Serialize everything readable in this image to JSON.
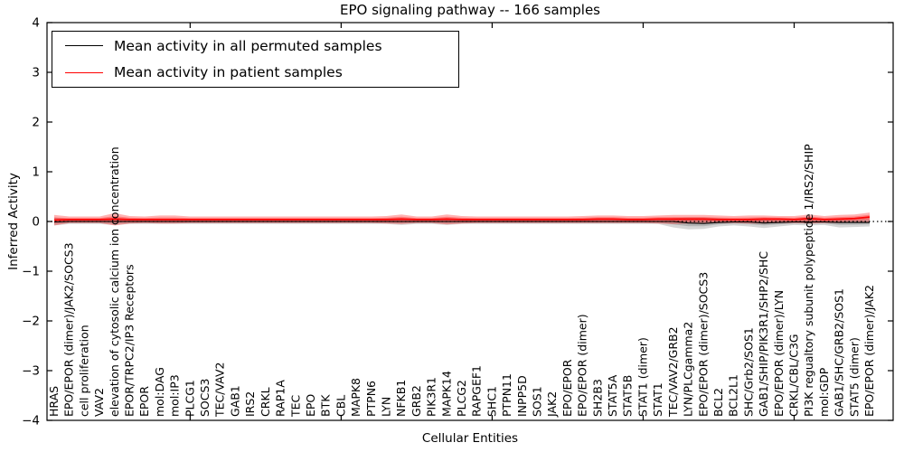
{
  "chart_data": {
    "type": "line",
    "title": "EPO signaling pathway -- 166 samples",
    "xlabel": "Cellular Entities",
    "ylabel": "Inferred Activity",
    "ylim": [
      -4,
      4
    ],
    "yticks": [
      -4,
      -3,
      -2,
      -1,
      0,
      1,
      2,
      3,
      4
    ],
    "x_major_tick_indices": [
      9,
      19,
      29,
      39,
      49
    ],
    "grid": false,
    "zero_line": {
      "style": "dotted",
      "color": "#000000",
      "y": 0
    },
    "legend": {
      "position": "upper-left",
      "entries": [
        {
          "label": "Mean activity in all permuted samples",
          "color": "#000000"
        },
        {
          "label": "Mean activity in patient samples",
          "color": "#ff0000"
        }
      ]
    },
    "categories": [
      "HRAS",
      "EPO/EPOR (dimer)/JAK2/SOCS3",
      "cell proliferation",
      "VAV2",
      "elevation of cytosolic calcium ion concentration",
      "EPOR/TRPC2/IP3 Receptors",
      "EPOR",
      "mol:DAG",
      "mol:IP3",
      "PLCG1",
      "SOCS3",
      "TEC/VAV2",
      "GAB1",
      "IRS2",
      "CRKL",
      "RAP1A",
      "TEC",
      "EPO",
      "BTK",
      "CBL",
      "MAPK8",
      "PTPN6",
      "LYN",
      "NFKB1",
      "GRB2",
      "PIK3R1",
      "MAPK14",
      "PLCG2",
      "RAPGEF1",
      "SHC1",
      "PTPN11",
      "INPP5D",
      "SOS1",
      "JAK2",
      "EPO/EPOR",
      "EPO/EPOR (dimer)",
      "SH2B3",
      "STAT5A",
      "STAT5B",
      "STAT1 (dimer)",
      "STAT1",
      "TEC/VAV2/GRB2",
      "LYN/PLCgamma2",
      "EPO/EPOR (dimer)/SOCS3",
      "BCL2",
      "BCL2L1",
      "SHC/Grb2/SOS1",
      "GAB1/SHIP/PIK3R1/SHP2/SHC",
      "EPO/EPOR (dimer)/LYN",
      "CRKL/CBL/C3G",
      "PI3K regualtory subunit polypeptide 1/IRS2/SHIP",
      "mol:GDP",
      "GAB1/SHC/GRB2/SOS1",
      "STAT5 (dimer)",
      "EPO/EPOR (dimer)/JAK2"
    ],
    "series": [
      {
        "name": "Mean activity in all permuted samples",
        "color": "#000000",
        "line_width": 1.1,
        "band_color": "rgba(0,0,0,0.16)",
        "values": [
          -0.01,
          0,
          0,
          0,
          0,
          0,
          0,
          0,
          0,
          0,
          0,
          0,
          0,
          0,
          0,
          0,
          0,
          0,
          0,
          0,
          0,
          0,
          0,
          0,
          0,
          0,
          0,
          0,
          0,
          0,
          0,
          0,
          0,
          0,
          0,
          0,
          0,
          0,
          0,
          0,
          0,
          0,
          -0.03,
          -0.04,
          -0.02,
          -0.01,
          -0.01,
          -0.03,
          -0.02,
          -0.01,
          -0.01,
          -0.01,
          -0.02,
          -0.02,
          -0.02
        ],
        "band_upper": [
          0.08,
          0.05,
          0.05,
          0.05,
          0.08,
          0.05,
          0.05,
          0.05,
          0.05,
          0.05,
          0.05,
          0.05,
          0.05,
          0.05,
          0.05,
          0.05,
          0.05,
          0.05,
          0.05,
          0.05,
          0.05,
          0.05,
          0.06,
          0.07,
          0.05,
          0.05,
          0.07,
          0.05,
          0.05,
          0.05,
          0.05,
          0.05,
          0.05,
          0.05,
          0.05,
          0.05,
          0.06,
          0.06,
          0.05,
          0.05,
          0.05,
          0.07,
          0.08,
          0.08,
          0.07,
          0.05,
          0.06,
          0.07,
          0.06,
          0.05,
          0.08,
          0.05,
          0.06,
          0.06,
          0.07
        ],
        "band_lower": [
          -0.08,
          -0.05,
          -0.05,
          -0.05,
          -0.07,
          -0.05,
          -0.05,
          -0.05,
          -0.05,
          -0.05,
          -0.05,
          -0.05,
          -0.05,
          -0.05,
          -0.05,
          -0.05,
          -0.05,
          -0.05,
          -0.05,
          -0.05,
          -0.05,
          -0.05,
          -0.05,
          -0.07,
          -0.05,
          -0.05,
          -0.07,
          -0.05,
          -0.05,
          -0.05,
          -0.05,
          -0.05,
          -0.05,
          -0.05,
          -0.05,
          -0.05,
          -0.05,
          -0.05,
          -0.05,
          -0.05,
          -0.05,
          -0.12,
          -0.16,
          -0.15,
          -0.1,
          -0.08,
          -0.1,
          -0.13,
          -0.1,
          -0.07,
          -0.08,
          -0.07,
          -0.12,
          -0.11,
          -0.1
        ]
      },
      {
        "name": "Mean activity in patient samples",
        "color": "#ff0000",
        "line_width": 1.6,
        "band_color": "rgba(255,0,0,0.30)",
        "values": [
          0.03,
          0.04,
          0.04,
          0.04,
          0.05,
          0.04,
          0.04,
          0.04,
          0.04,
          0.04,
          0.04,
          0.04,
          0.04,
          0.04,
          0.04,
          0.04,
          0.04,
          0.04,
          0.04,
          0.04,
          0.04,
          0.04,
          0.04,
          0.05,
          0.04,
          0.04,
          0.05,
          0.04,
          0.04,
          0.04,
          0.04,
          0.04,
          0.04,
          0.04,
          0.04,
          0.04,
          0.05,
          0.05,
          0.04,
          0.04,
          0.05,
          0.05,
          0.05,
          0.05,
          0.04,
          0.04,
          0.04,
          0.05,
          0.05,
          0.04,
          0.06,
          0.04,
          0.05,
          0.06,
          0.09
        ],
        "band_upper": [
          0.13,
          0.1,
          0.1,
          0.1,
          0.17,
          0.11,
          0.1,
          0.12,
          0.12,
          0.1,
          0.1,
          0.1,
          0.1,
          0.1,
          0.1,
          0.1,
          0.1,
          0.1,
          0.1,
          0.1,
          0.1,
          0.1,
          0.11,
          0.14,
          0.1,
          0.1,
          0.14,
          0.11,
          0.1,
          0.1,
          0.1,
          0.1,
          0.1,
          0.1,
          0.1,
          0.11,
          0.12,
          0.12,
          0.11,
          0.11,
          0.12,
          0.13,
          0.13,
          0.13,
          0.12,
          0.11,
          0.12,
          0.12,
          0.11,
          0.11,
          0.14,
          0.11,
          0.13,
          0.14,
          0.18
        ],
        "band_lower": [
          -0.08,
          -0.03,
          -0.03,
          -0.03,
          -0.08,
          -0.04,
          -0.03,
          -0.04,
          -0.04,
          -0.03,
          -0.03,
          -0.03,
          -0.03,
          -0.03,
          -0.03,
          -0.03,
          -0.03,
          -0.03,
          -0.03,
          -0.03,
          -0.03,
          -0.03,
          -0.04,
          -0.05,
          -0.03,
          -0.03,
          -0.06,
          -0.04,
          -0.03,
          -0.03,
          -0.03,
          -0.03,
          -0.03,
          -0.03,
          -0.03,
          -0.03,
          -0.03,
          -0.03,
          -0.03,
          -0.03,
          -0.04,
          -0.05,
          -0.04,
          -0.04,
          -0.03,
          -0.03,
          -0.04,
          -0.04,
          -0.03,
          -0.03,
          -0.04,
          -0.03,
          -0.03,
          -0.02,
          -0.01
        ]
      }
    ]
  }
}
